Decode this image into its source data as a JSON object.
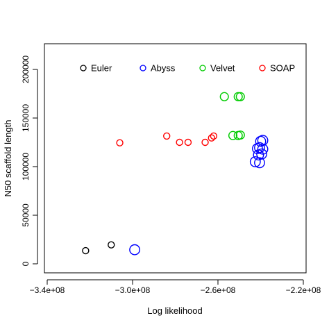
{
  "chart_data": {
    "type": "scatter",
    "title": "",
    "xlabel": "Log likelihood",
    "ylabel": "N50 scaffold length",
    "xlim": [
      -340000000,
      -220000000
    ],
    "ylim": [
      0,
      220000
    ],
    "x_ticks": [
      -340000000,
      -300000000,
      -260000000,
      -220000000
    ],
    "x_tick_labels": [
      "−3.4e+08",
      "−3.0e+08",
      "−2.6e+08",
      "−2.2e+08"
    ],
    "y_ticks": [
      0,
      50000,
      100000,
      150000,
      200000
    ],
    "y_tick_labels": [
      "0",
      "50000",
      "100000",
      "150000",
      "200000"
    ],
    "grid": false,
    "legend_position": "top",
    "series": [
      {
        "name": "Euler",
        "color": "#000000",
        "points": [
          {
            "x": -322000000,
            "y": 13500,
            "size": 1.0
          },
          {
            "x": -310000000,
            "y": 19500,
            "size": 1.0
          }
        ]
      },
      {
        "name": "Abyss",
        "color": "#0000ff",
        "points": [
          {
            "x": -299000000,
            "y": 14500,
            "size": 1.6
          },
          {
            "x": -242500000,
            "y": 105000,
            "size": 1.6
          },
          {
            "x": -240500000,
            "y": 104000,
            "size": 1.6
          },
          {
            "x": -241000000,
            "y": 112000,
            "size": 1.6
          },
          {
            "x": -239500000,
            "y": 113000,
            "size": 1.6
          },
          {
            "x": -241500000,
            "y": 118500,
            "size": 1.6
          },
          {
            "x": -240500000,
            "y": 119500,
            "size": 1.6
          },
          {
            "x": -239000000,
            "y": 118000,
            "size": 1.6
          },
          {
            "x": -240000000,
            "y": 126000,
            "size": 1.6
          },
          {
            "x": -239000000,
            "y": 127000,
            "size": 1.6
          }
        ]
      },
      {
        "name": "Velvet",
        "color": "#00cc00",
        "points": [
          {
            "x": -253000000,
            "y": 132000,
            "size": 1.3
          },
          {
            "x": -250500000,
            "y": 132000,
            "size": 1.3
          },
          {
            "x": -249500000,
            "y": 132500,
            "size": 1.3
          },
          {
            "x": -257000000,
            "y": 172000,
            "size": 1.3
          },
          {
            "x": -250500000,
            "y": 172000,
            "size": 1.3
          },
          {
            "x": -249500000,
            "y": 172000,
            "size": 1.3
          }
        ]
      },
      {
        "name": "SOAP",
        "color": "#ff0000",
        "points": [
          {
            "x": -306000000,
            "y": 124500,
            "size": 1.0
          },
          {
            "x": -284000000,
            "y": 131500,
            "size": 1.0
          },
          {
            "x": -278000000,
            "y": 125000,
            "size": 1.0
          },
          {
            "x": -274000000,
            "y": 125000,
            "size": 1.0
          },
          {
            "x": -266000000,
            "y": 125000,
            "size": 1.0
          },
          {
            "x": -263000000,
            "y": 129500,
            "size": 1.0
          },
          {
            "x": -262000000,
            "y": 131500,
            "size": 1.0
          }
        ]
      }
    ]
  }
}
